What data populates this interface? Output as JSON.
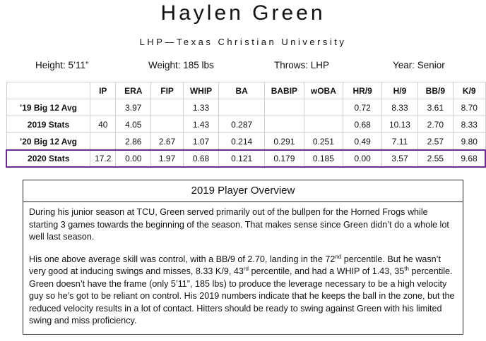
{
  "header": {
    "title": "Haylen Green",
    "subtitle": "LHP—Texas Christian University",
    "info": [
      "Height: 5’11”",
      "Weight: 185 lbs",
      "Throws: LHP",
      "Year: Senior"
    ]
  },
  "table": {
    "columns": [
      "IP",
      "ERA",
      "FIP",
      "WHIP",
      "BA",
      "BABIP",
      "wOBA",
      "HR/9",
      "H/9",
      "BB/9",
      "K/9"
    ],
    "rows": [
      [
        "’19 Big 12 Avg",
        null,
        "3.97",
        null,
        "1.33",
        null,
        null,
        null,
        "0.72",
        "8.33",
        "3.61",
        "8.70"
      ],
      [
        "2019 Stats",
        "40",
        "4.05",
        null,
        "1.43",
        "0.287",
        null,
        null,
        "0.68",
        "10.13",
        "2.70",
        "8.33"
      ],
      [
        "’20 Big 12 Avg",
        null,
        "2.86",
        "2.67",
        "1.07",
        "0.214",
        "0.291",
        "0.251",
        "0.49",
        "7.11",
        "2.57",
        "9.80"
      ],
      [
        "2020 Stats",
        "17.2",
        "0.00",
        "1.97",
        "0.68",
        "0.121",
        "0.179",
        "0.185",
        "0.00",
        "3.57",
        "2.55",
        "9.68"
      ]
    ]
  },
  "overview": {
    "title": "2019 Player Overview",
    "paragraphs": [
      [
        {
          "text": "During his junior season at TCU, Green served primarily out of the bullpen for the Horned Frogs while starting 3 games towards the beginning of the season. That makes sense since Green didn’t do a whole lot well last season."
        }
      ],
      [
        {
          "text": "His one above average skill was control, with a BB/9 of 2.70, landing in the 72"
        },
        {
          "sup": "nd"
        },
        {
          "text": " percentile. But he wasn’t very good at inducing swings and misses, 8.33 K/9, 43"
        },
        {
          "sup": "rd"
        },
        {
          "text": " percentile, and had a WHIP of 1.43, 35"
        },
        {
          "sup": "th"
        },
        {
          "text": " percentile. Green doesn’t have the frame (only 5’11”, 185 lbs) to produce the leverage necessary to be a high velocity guy so he’s got to be reliant on control. His 2019 numbers indicate that he keeps the ball in the zone, but the reduced velocity results in a lot of contact. Hitters should be ready to swing against Green with his limited swing and miss proficiency."
        }
      ]
    ]
  }
}
